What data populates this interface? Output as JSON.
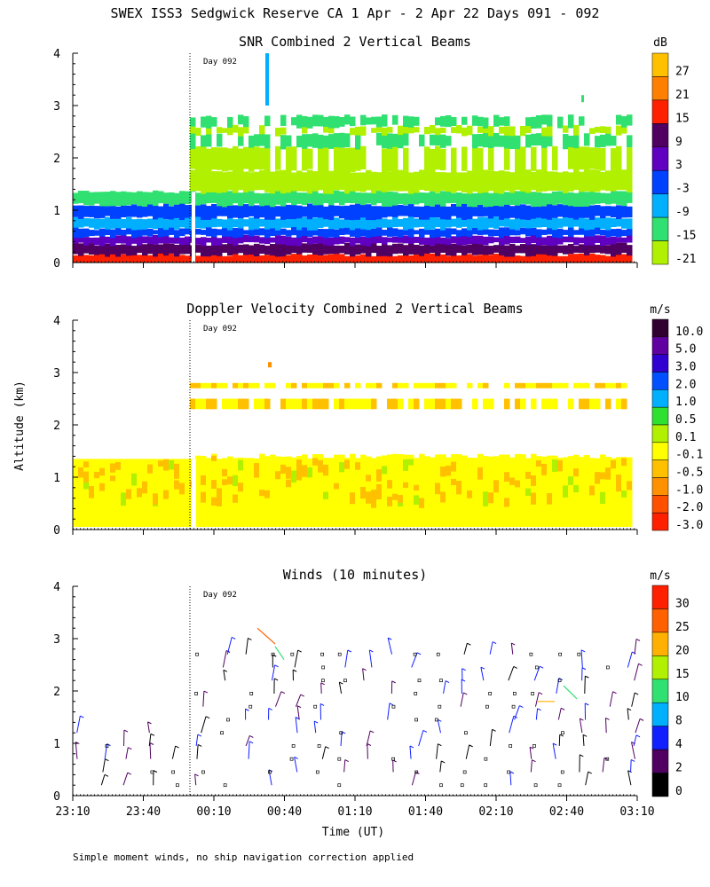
{
  "title": "SWEX ISS3 Sedgwick Reserve CA   1 Apr -  2 Apr 22 Days 091 - 092",
  "ylabel": "Altitude (km)",
  "xlabel": "Time (UT)",
  "footer": "Simple moment winds, no ship navigation correction applied",
  "day_marker": "Day 092",
  "x_ticks": [
    "23:10",
    "23:40",
    "00:10",
    "00:40",
    "01:10",
    "01:40",
    "02:10",
    "02:40",
    "03:10"
  ],
  "y_ticks": [
    "0",
    "1",
    "2",
    "3",
    "4"
  ],
  "chart_data": [
    {
      "type": "heatmap",
      "title": "SNR Combined 2 Vertical Beams",
      "units": "dB",
      "ylim": [
        0,
        4
      ],
      "colorbar": {
        "labels": [
          "27",
          "21",
          "15",
          "9",
          "3",
          "-3",
          "-9",
          "-15",
          "-21"
        ],
        "colors": [
          "#ffc000",
          "#ff8000",
          "#ff2000",
          "#500060",
          "#6000c0",
          "#0040ff",
          "#00b0ff",
          "#30e070",
          "#b0f000"
        ]
      },
      "layers": [
        {
          "from_km": 0.0,
          "to_km": 0.15,
          "level": "15"
        },
        {
          "from_km": 0.15,
          "to_km": 0.35,
          "level": "9"
        },
        {
          "from_km": 0.35,
          "to_km": 0.5,
          "level": "3"
        },
        {
          "from_km": 0.5,
          "to_km": 0.65,
          "level": "-3"
        },
        {
          "from_km": 0.65,
          "to_km": 0.85,
          "level": "-9"
        },
        {
          "from_km": 0.85,
          "to_km": 1.1,
          "level": "-3"
        },
        {
          "from_km": 1.1,
          "to_km": 1.35,
          "level": "-15"
        },
        {
          "from_km": 1.35,
          "to_km": 1.75,
          "level": "-21"
        },
        {
          "from_km": 1.75,
          "to_km": 2.2,
          "level": "-21"
        },
        {
          "from_km": 2.2,
          "to_km": 2.45,
          "level": "-15"
        },
        {
          "from_km": 2.45,
          "to_km": 2.6,
          "level": "-21"
        },
        {
          "from_km": 2.6,
          "to_km": 2.8,
          "level": "-15"
        }
      ]
    },
    {
      "type": "heatmap",
      "title": "Doppler Velocity Combined 2 Vertical Beams",
      "units": "m/s",
      "ylim": [
        0,
        4
      ],
      "colorbar": {
        "labels": [
          "10.0",
          "5.0",
          "3.0",
          "2.0",
          "1.0",
          "0.5",
          "0.1",
          "-0.1",
          "-0.5",
          "-1.0",
          "-2.0",
          "-3.0"
        ],
        "colors": [
          "#300030",
          "#6000a0",
          "#3000d0",
          "#0050ff",
          "#00b0ff",
          "#30e030",
          "#b0f000",
          "#ffff00",
          "#ffc000",
          "#ff9000",
          "#ff5000",
          "#ff2000"
        ]
      },
      "dominant_level": "-0.1",
      "echo_top_km": 1.4,
      "upper_bands_km": [
        [
          2.3,
          2.5
        ],
        [
          2.7,
          2.8
        ]
      ]
    },
    {
      "type": "scatter",
      "title": "Winds (10 minutes)",
      "units": "m/s",
      "ylim": [
        0,
        4
      ],
      "colorbar": {
        "labels": [
          "30",
          "25",
          "20",
          "15",
          "10",
          "8",
          "4",
          "2",
          "0"
        ],
        "colors": [
          "#ff2000",
          "#ff6000",
          "#ffb000",
          "#b0f000",
          "#30e070",
          "#00b0ff",
          "#1020ff",
          "#500060",
          "#000000"
        ]
      }
    }
  ]
}
